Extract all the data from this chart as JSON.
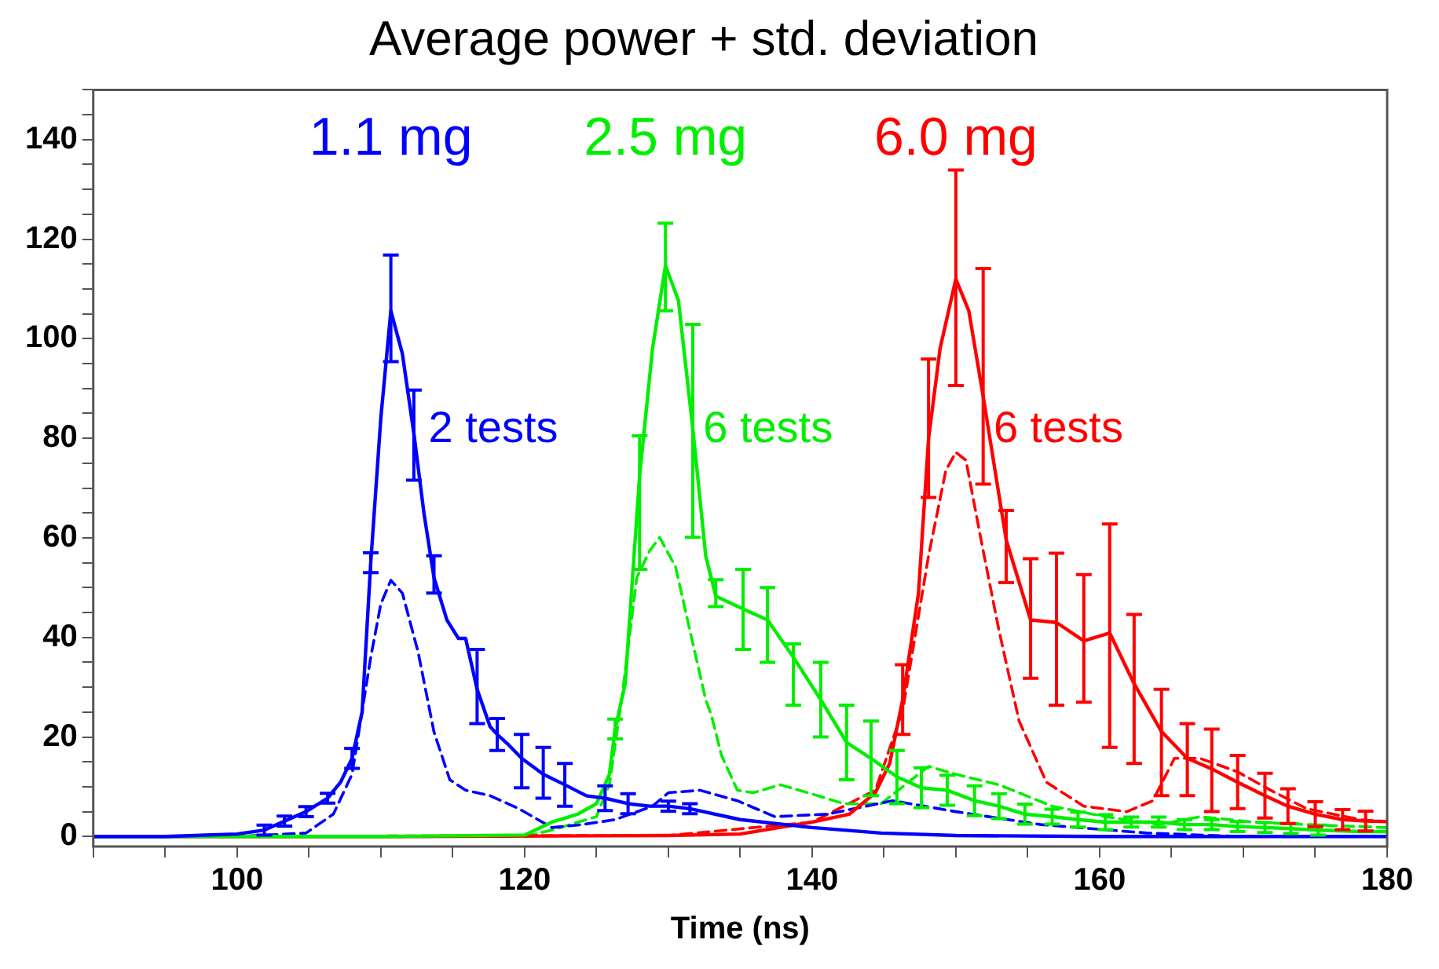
{
  "chart_data": {
    "type": "line",
    "title": "Average power + std. deviation",
    "xlabel": "Time (ns)",
    "xlim": [
      90,
      180
    ],
    "xticks": [
      {
        "value": 90,
        "label": null
      },
      {
        "value": 95,
        "label": null
      },
      100,
      {
        "value": 105,
        "label": null
      },
      {
        "value": 110,
        "label": null
      },
      {
        "value": 115,
        "label": null
      },
      120,
      {
        "value": 125,
        "label": null
      },
      {
        "value": 130,
        "label": null
      },
      {
        "value": 135,
        "label": null
      },
      140,
      {
        "value": 145,
        "label": null
      },
      {
        "value": 150,
        "label": null
      },
      {
        "value": 155,
        "label": null
      },
      160,
      {
        "value": 165,
        "label": null
      },
      {
        "value": 170,
        "label": null
      },
      {
        "value": 175,
        "label": null
      },
      180
    ],
    "ylim": [
      -2,
      150
    ],
    "yticks": [
      0,
      {
        "value": 5,
        "label": null
      },
      {
        "value": 10,
        "label": null
      },
      {
        "value": 15,
        "label": null
      },
      20,
      {
        "value": 25,
        "label": null
      },
      {
        "value": 30,
        "label": null
      },
      {
        "value": 35,
        "label": null
      },
      40,
      {
        "value": 45,
        "label": null
      },
      {
        "value": 50,
        "label": null
      },
      {
        "value": 55,
        "label": null
      },
      60,
      {
        "value": 65,
        "label": null
      },
      {
        "value": 70,
        "label": null
      },
      {
        "value": 75,
        "label": null
      },
      80,
      {
        "value": 85,
        "label": null
      },
      {
        "value": 90,
        "label": null
      },
      {
        "value": 95,
        "label": null
      },
      100,
      {
        "value": 105,
        "label": null
      },
      {
        "value": 110,
        "label": null
      },
      {
        "value": 115,
        "label": null
      },
      120,
      {
        "value": 125,
        "label": null
      },
      {
        "value": 130,
        "label": null
      },
      {
        "value": 135,
        "label": null
      },
      140,
      {
        "value": 145,
        "label": null
      },
      {
        "value": 150,
        "label": null
      }
    ],
    "series": [
      {
        "color": "#0000ff",
        "line_style": "solid",
        "x": [
          90,
          95,
          100,
          101.9,
          103.3,
          104.8,
          106.3,
          107.2,
          108,
          108.7,
          109.3,
          110,
          110.7,
          111.5,
          112.3,
          113,
          113.7,
          114.6,
          115.4,
          115.9,
          116.7,
          117.6,
          118.1,
          118.9,
          119.8,
          121.3,
          122.8,
          124.3,
          125.6,
          127.2,
          128.7,
          130,
          131.5,
          135,
          140,
          144.8,
          150,
          160,
          170,
          180
        ],
        "values": [
          0,
          0,
          0.5,
          1.3,
          3.1,
          5,
          7.7,
          10.9,
          15.7,
          25,
          55,
          84,
          105.6,
          97,
          81,
          65,
          52,
          43.5,
          39.8,
          39.8,
          29.6,
          22.1,
          20.5,
          18.4,
          15.7,
          12.5,
          10.4,
          8.2,
          7.7,
          6.6,
          6.1,
          6.1,
          5.6,
          3.4,
          1.8,
          0.7,
          0.2,
          0,
          0,
          0
        ],
        "errors": [
          null,
          null,
          null,
          1,
          1,
          1,
          1,
          null,
          2,
          null,
          2,
          null,
          [
            95.4,
            116.8
          ],
          null,
          [
            71.6,
            89.7
          ],
          null,
          [
            48.9,
            56.4
          ],
          null,
          null,
          null,
          [
            22.7,
            37.6
          ],
          null,
          [
            17.3,
            23.7
          ],
          null,
          [
            9.8,
            20.5
          ],
          [
            7.7,
            17.9
          ],
          [
            6.1,
            14.7
          ],
          null,
          2.5,
          2,
          null,
          1,
          1,
          null,
          null,
          null,
          null,
          null,
          null,
          null
        ]
      },
      {
        "color": "#00ee00",
        "line_style": "solid",
        "x": [
          90,
          100,
          110,
          120,
          121.9,
          123.7,
          125,
          125.9,
          126.3,
          127,
          128,
          128.9,
          129.8,
          130.7,
          131.7,
          132.6,
          133.3,
          135.2,
          136.9,
          138.7,
          140.6,
          142.4,
          144.1,
          145.9,
          147.6,
          149.4,
          151.3,
          153,
          154.8,
          156.7,
          158.5,
          160.4,
          162.2,
          164.1,
          165.9,
          167.8,
          169.6,
          171.5,
          173.3,
          175.2,
          178.1,
          180
        ],
        "values": [
          0,
          0,
          0,
          0.3,
          2.9,
          4.5,
          6.6,
          12.5,
          21.6,
          30.7,
          72.4,
          98,
          114.7,
          107.7,
          82,
          56.4,
          48.3,
          45.7,
          43.5,
          36,
          27.5,
          18.9,
          15.7,
          12,
          9.8,
          9.3,
          7.2,
          6.1,
          4.5,
          4,
          3.4,
          2.9,
          2.9,
          2.9,
          2.4,
          2.4,
          2,
          1.8,
          1.6,
          1.3,
          1,
          1
        ],
        "errors": [
          null,
          null,
          null,
          null,
          null,
          null,
          null,
          null,
          2,
          null,
          [
            53.7,
            80.5
          ],
          null,
          [
            105.6,
            123.2
          ],
          null,
          [
            60.1,
            102.9
          ],
          null,
          [
            46.2,
            51.6
          ],
          [
            37.6,
            53.7
          ],
          [
            35,
            50
          ],
          [
            26.4,
            38.7
          ],
          [
            20,
            35
          ],
          [
            11.4,
            26.4
          ],
          [
            8.2,
            23.2
          ],
          [
            6.6,
            17.3
          ],
          4,
          3,
          3,
          2.5,
          2,
          1.5,
          1.5,
          1.5,
          1,
          1,
          1,
          1,
          1,
          1,
          1,
          1,
          null,
          null
        ]
      },
      {
        "color": "#ff0000",
        "line_style": "solid",
        "x": [
          90,
          110,
          130,
          135,
          140,
          142.6,
          144.4,
          145.4,
          146.3,
          147.4,
          148.1,
          148.9,
          150,
          150.9,
          151.9,
          153.5,
          155.2,
          157,
          158.9,
          160.7,
          162.4,
          164.3,
          166.1,
          167.8,
          169.6,
          171.5,
          173.1,
          175,
          176.9,
          178.5,
          180
        ],
        "values": [
          0,
          0,
          0.2,
          0.5,
          2.9,
          4.5,
          8.8,
          14.7,
          27.5,
          48.9,
          79.9,
          98,
          112,
          105.6,
          88.4,
          59.6,
          43.5,
          43,
          39.3,
          40.9,
          30.7,
          21.1,
          15.7,
          13.6,
          10.9,
          8.2,
          6.1,
          4.5,
          3.4,
          3.1,
          3
        ],
        "errors": [
          null,
          null,
          null,
          null,
          null,
          null,
          null,
          null,
          7,
          null,
          [
            68.1,
            95.9
          ],
          null,
          [
            90.6,
            133.9
          ],
          null,
          [
            70.8,
            114.1
          ],
          [
            51,
            65.5
          ],
          [
            31.8,
            55.8
          ],
          [
            26.4,
            56.9
          ],
          [
            27,
            52.6
          ],
          [
            17.9,
            62.8
          ],
          [
            14.7,
            44.6
          ],
          [
            8.2,
            29.6
          ],
          [
            8.2,
            22.7
          ],
          [
            5,
            21.6
          ],
          [
            5.6,
            16.3
          ],
          4.5,
          3.5,
          2.5,
          2,
          2,
          null
        ]
      },
      {
        "color": "#0000ff",
        "line_style": "dashed",
        "x": [
          90,
          100,
          104.8,
          106.7,
          108,
          109.3,
          110,
          110.7,
          111.5,
          112.6,
          113.7,
          114.8,
          115.9,
          117.6,
          119.6,
          121.9,
          124,
          126.3,
          128.9,
          130,
          132.2,
          134.8,
          137.4,
          141.1,
          145.6,
          150,
          155.9,
          163.3,
          170,
          180
        ],
        "values": [
          0,
          0,
          0.7,
          4.5,
          12.5,
          36,
          46.7,
          51.5,
          48.9,
          37,
          21,
          11.4,
          9.3,
          8.2,
          5.6,
          1.8,
          2.4,
          3.4,
          6.1,
          8.8,
          9.3,
          7.2,
          4,
          4.5,
          7.2,
          5,
          2.4,
          0.7,
          0,
          0
        ]
      },
      {
        "color": "#00ee00",
        "line_style": "dashed",
        "x": [
          90,
          110,
          120,
          121.9,
          125,
          125.9,
          126.8,
          127.8,
          128.7,
          129.4,
          130.5,
          131.5,
          132.6,
          133,
          133.7,
          134.8,
          135.9,
          137.8,
          140.4,
          142.2,
          144.8,
          148.1,
          150,
          153,
          156.7,
          160.4,
          164.1,
          167,
          170.7,
          174.4,
          180
        ],
        "values": [
          0,
          0,
          0,
          1.3,
          4,
          10.4,
          28.6,
          52,
          57.4,
          60.1,
          54.2,
          41.4,
          27.5,
          24.3,
          16.3,
          9.3,
          8.8,
          10.4,
          8.2,
          6.6,
          6.6,
          14.1,
          12.5,
          10.4,
          6.1,
          4,
          2.4,
          4,
          2.9,
          2.4,
          1.8
        ]
      },
      {
        "color": "#ff0000",
        "line_style": "dashed",
        "x": [
          90,
          130,
          140,
          144.4,
          146.3,
          148.1,
          149.3,
          150,
          150.7,
          151.9,
          153,
          154.4,
          156.3,
          158.9,
          161.9,
          163.7,
          165.2,
          167,
          169.6,
          171.9,
          174.4,
          178.1,
          180
        ],
        "values": [
          0,
          0.2,
          2.9,
          9.3,
          25.3,
          56.4,
          73.5,
          77.2,
          75.6,
          57.4,
          41.4,
          23.2,
          10.9,
          6.1,
          5,
          7.2,
          15.7,
          15.7,
          13,
          9.3,
          5.6,
          3.4,
          3
        ]
      }
    ],
    "annotations": [
      "1.1 mg",
      "2 tests",
      "2.5 mg",
      "6 tests",
      "6.0 mg",
      "6 tests"
    ]
  }
}
